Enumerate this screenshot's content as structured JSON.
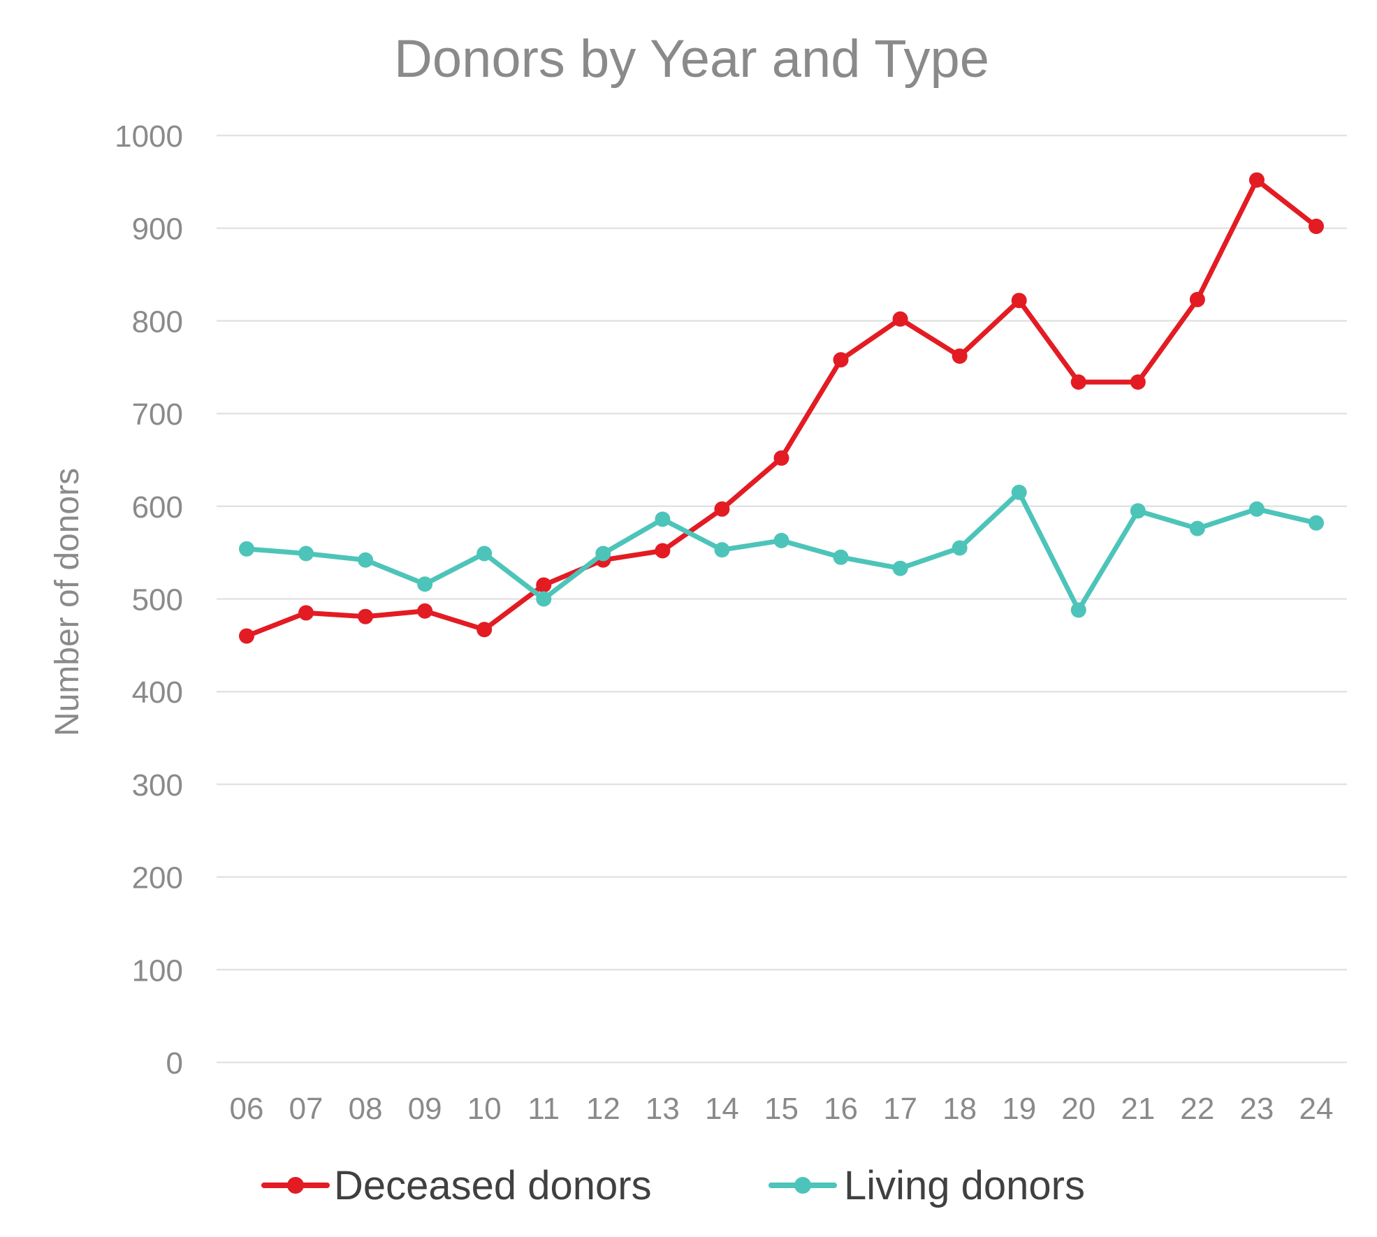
{
  "chart_data": {
    "type": "line",
    "title": "Donors by Year and Type",
    "xlabel": "",
    "ylabel": "Number of donors",
    "ylim": [
      0,
      1000
    ],
    "yticks": [
      "0",
      "100",
      "200",
      "300",
      "400",
      "500",
      "600",
      "700",
      "800",
      "900",
      "1000"
    ],
    "categories": [
      "06",
      "07",
      "08",
      "09",
      "10",
      "11",
      "12",
      "13",
      "14",
      "15",
      "16",
      "17",
      "18",
      "19",
      "20",
      "21",
      "22",
      "23",
      "24"
    ],
    "grid": true,
    "legend_position": "bottom",
    "series": [
      {
        "name": "Deceased donors",
        "color": "#e31b23",
        "values": [
          460,
          485,
          481,
          487,
          467,
          515,
          542,
          552,
          597,
          652,
          758,
          802,
          762,
          822,
          734,
          734,
          823,
          952,
          902
        ]
      },
      {
        "name": "Living donors",
        "color": "#4dc4b9",
        "values": [
          554,
          549,
          542,
          516,
          549,
          500,
          549,
          586,
          553,
          563,
          545,
          533,
          555,
          615,
          488,
          595,
          576,
          597,
          582
        ]
      }
    ]
  }
}
